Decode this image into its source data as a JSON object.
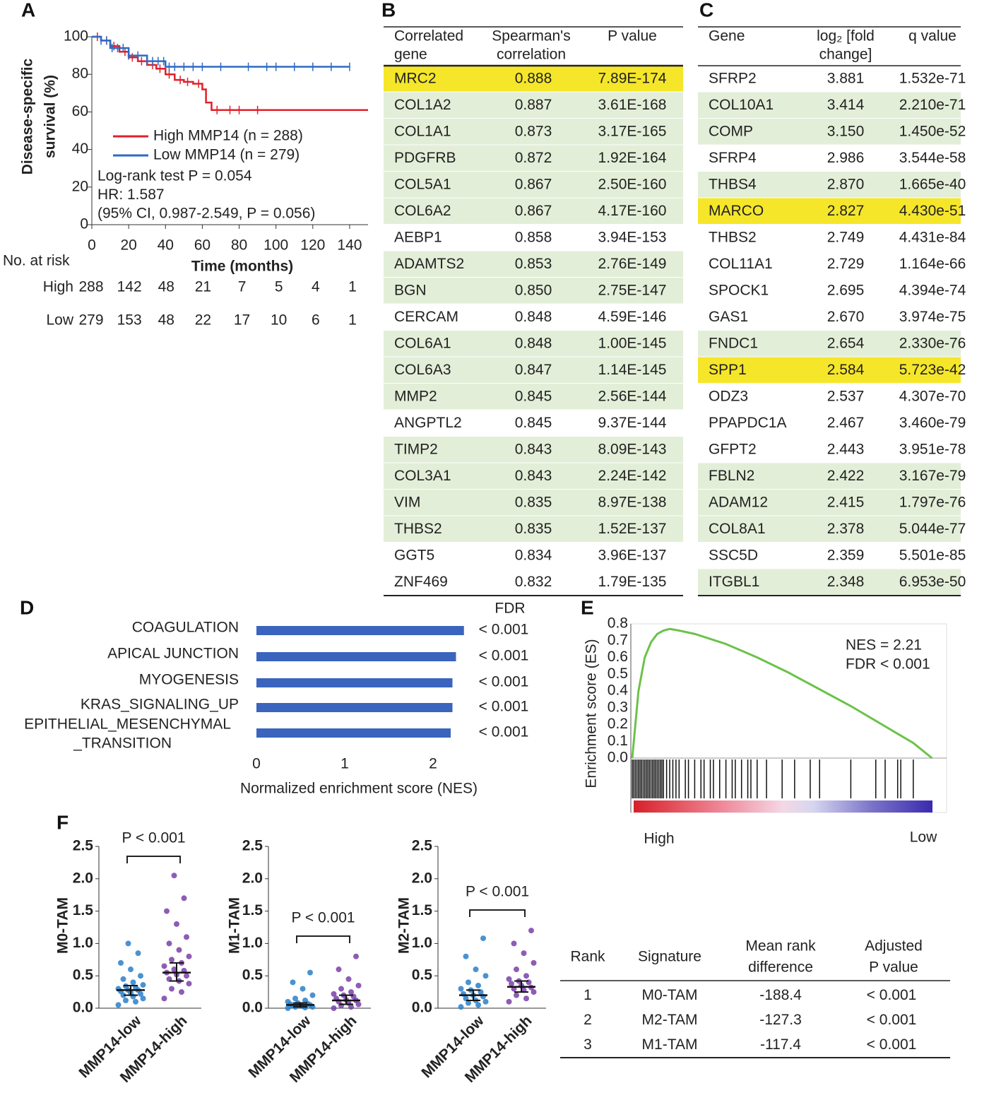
{
  "panel_labels": [
    "A",
    "B",
    "C",
    "D",
    "E",
    "F"
  ],
  "chart_data": [
    {
      "type": "step",
      "ylabel": [
        "Disease-specific",
        "survival (%)"
      ],
      "xlabel": "Time (months)",
      "xlim": [
        0,
        150
      ],
      "xticks": [
        0,
        20,
        40,
        60,
        80,
        100,
        120,
        140
      ],
      "ylim": [
        0,
        100
      ],
      "yticks": [
        0,
        20,
        40,
        60,
        80,
        100
      ],
      "series": [
        {
          "name": "High MMP14 (n = 288)",
          "color": "#e0202a",
          "x": [
            0,
            5,
            10,
            15,
            20,
            25,
            30,
            35,
            40,
            45,
            50,
            55,
            60,
            62,
            65,
            70,
            150
          ],
          "values": [
            100,
            98,
            95,
            92,
            89,
            87,
            85,
            83,
            80,
            77,
            76,
            75,
            72,
            65,
            61,
            61,
            61
          ],
          "censor_x": [
            3,
            8,
            12,
            18,
            22,
            27,
            33,
            37,
            42,
            48,
            52,
            58,
            68,
            75,
            80,
            90
          ]
        },
        {
          "name": "Low MMP14 (n = 279)",
          "color": "#2d6bc4",
          "x": [
            0,
            5,
            10,
            20,
            30,
            40,
            140
          ],
          "values": [
            100,
            98,
            94,
            90,
            87,
            84,
            84
          ],
          "censor_x": [
            5,
            8,
            11,
            14,
            17,
            20,
            25,
            30,
            33,
            36,
            39,
            42,
            45,
            50,
            55,
            60,
            70,
            85,
            95,
            100,
            110,
            120,
            130,
            140
          ]
        }
      ],
      "annotations": [
        "Log-rank test P = 0.054",
        "HR: 1.587",
        "(95% CI,  0.987-2.549, P = 0.056)"
      ],
      "risk_table": {
        "title": "No. at risk",
        "rows": [
          {
            "label": "High",
            "values": [
              288,
              142,
              48,
              21,
              7,
              5,
              4,
              1
            ]
          },
          {
            "label": "Low",
            "values": [
              279,
              153,
              48,
              22,
              17,
              10,
              6,
              1
            ]
          }
        ]
      }
    },
    {
      "type": "barh",
      "categories": [
        "COAGULATION",
        "APICAL JUNCTION",
        "MYOGENESIS",
        "KRAS_SIGNALING_UP",
        [
          "EPITHELIAL_MESENCHYMAL",
          "_TRANSITION"
        ]
      ],
      "values": [
        2.35,
        2.26,
        2.22,
        2.22,
        2.2
      ],
      "color": "#3a64bd",
      "xlim": [
        0,
        2.4
      ],
      "xticks": [
        0,
        1,
        2
      ],
      "xlabel": "Normalized enrichment score (NES)",
      "fdr_title": "FDR",
      "fdr": [
        "< 0.001",
        "< 0.001",
        "< 0.001",
        "< 0.001",
        "< 0.001"
      ]
    },
    {
      "type": "line",
      "ylabel": "Enrichment score (ES)",
      "color": "#6cc24a",
      "xlim": [
        0,
        100
      ],
      "x": [
        0,
        1,
        2,
        4,
        6,
        8,
        10,
        12,
        15,
        20,
        30,
        40,
        50,
        60,
        70,
        80,
        90,
        96
      ],
      "values": [
        0,
        0.2,
        0.4,
        0.6,
        0.69,
        0.74,
        0.76,
        0.77,
        0.76,
        0.74,
        0.68,
        0.6,
        0.51,
        0.41,
        0.31,
        0.2,
        0.09,
        0
      ],
      "ylim": [
        0,
        0.8
      ],
      "yticks": [
        {
          "value": 0,
          "label": "0.0"
        },
        0.1,
        0.2,
        0.3,
        0.4,
        0.5,
        0.6,
        0.7,
        0.8
      ],
      "annotations": [
        "NES = 2.21",
        "FDR < 0.001"
      ],
      "hits": [
        0,
        0.5,
        1,
        1.5,
        2,
        2.5,
        3,
        3.5,
        4,
        4.5,
        5,
        5.5,
        6,
        6.5,
        7,
        7.5,
        8,
        8.5,
        9,
        9.5,
        10,
        11,
        12,
        13,
        14,
        15,
        17,
        18,
        20,
        22,
        23,
        25,
        26,
        28,
        30,
        32,
        33,
        35,
        37,
        38,
        40,
        43,
        48,
        52,
        57,
        60,
        70,
        78,
        81,
        85,
        86,
        90
      ],
      "x_end_labels": [
        "High",
        "Low"
      ]
    },
    {
      "type": "dot",
      "ylabel": "M0-TAM",
      "categories": [
        "MMP14-low",
        "MMP14-high"
      ],
      "ylim": [
        0,
        2.5
      ],
      "yticks": [
        {
          "value": 0,
          "label": "0.0"
        },
        0.5,
        {
          "value": 1,
          "label": "1.0"
        },
        1.5,
        {
          "value": 2,
          "label": "2.0"
        },
        2.5
      ],
      "annotation": "P < 0.001",
      "groups": [
        {
          "color": "#2a7fc9",
          "values": [
            0.05,
            0.1,
            0.12,
            0.15,
            0.18,
            0.2,
            0.22,
            0.24,
            0.26,
            0.28,
            0.28,
            0.3,
            0.32,
            0.34,
            0.36,
            0.4,
            0.45,
            0.5,
            0.6,
            0.7,
            0.85,
            1.0
          ],
          "median": 0.28,
          "iqr": [
            0.2,
            0.35
          ]
        },
        {
          "color": "#7a3fa8",
          "values": [
            0.15,
            0.25,
            0.3,
            0.38,
            0.42,
            0.45,
            0.5,
            0.52,
            0.55,
            0.58,
            0.6,
            0.65,
            0.7,
            0.75,
            0.8,
            0.9,
            1.0,
            1.1,
            1.3,
            1.5,
            1.7,
            2.05
          ],
          "median": 0.55,
          "iqr": [
            0.42,
            0.7
          ]
        }
      ]
    },
    {
      "type": "dot",
      "ylabel": "M1-TAM",
      "categories": [
        "MMP14-low",
        "MMP14-high"
      ],
      "ylim": [
        0,
        2.5
      ],
      "yticks": [
        {
          "value": 0,
          "label": "0.0"
        },
        0.5,
        {
          "value": 1,
          "label": "1.0"
        },
        1.5,
        {
          "value": 2,
          "label": "2.0"
        },
        2.5
      ],
      "annotation": "P < 0.001",
      "groups": [
        {
          "color": "#2a7fc9",
          "values": [
            0,
            0.01,
            0.02,
            0.02,
            0.03,
            0.04,
            0.05,
            0.05,
            0.06,
            0.07,
            0.08,
            0.1,
            0.12,
            0.15,
            0.2,
            0.3,
            0.4,
            0.55
          ],
          "median": 0.05,
          "iqr": [
            0.02,
            0.08
          ]
        },
        {
          "color": "#7a3fa8",
          "values": [
            0,
            0.02,
            0.04,
            0.06,
            0.08,
            0.1,
            0.12,
            0.13,
            0.15,
            0.18,
            0.2,
            0.22,
            0.25,
            0.3,
            0.35,
            0.45,
            0.6,
            0.8
          ],
          "median": 0.12,
          "iqr": [
            0.06,
            0.2
          ]
        }
      ]
    },
    {
      "type": "dot",
      "ylabel": "M2-TAM",
      "categories": [
        "MMP14-low",
        "MMP14-high"
      ],
      "ylim": [
        0,
        2.5
      ],
      "yticks": [
        {
          "value": 0,
          "label": "0.0"
        },
        0.5,
        {
          "value": 1,
          "label": "1.0"
        },
        1.5,
        {
          "value": 2,
          "label": "2.0"
        },
        2.5
      ],
      "annotation": "P < 0.001",
      "groups": [
        {
          "color": "#2a7fc9",
          "values": [
            0.02,
            0.05,
            0.08,
            0.1,
            0.12,
            0.15,
            0.18,
            0.2,
            0.22,
            0.25,
            0.28,
            0.3,
            0.35,
            0.4,
            0.5,
            0.6,
            0.8,
            1.08
          ],
          "median": 0.2,
          "iqr": [
            0.12,
            0.28
          ]
        },
        {
          "color": "#7a3fa8",
          "values": [
            0.1,
            0.15,
            0.2,
            0.25,
            0.28,
            0.3,
            0.32,
            0.35,
            0.38,
            0.4,
            0.42,
            0.45,
            0.5,
            0.6,
            0.7,
            0.85,
            1.0,
            1.2
          ],
          "median": 0.33,
          "iqr": [
            0.25,
            0.42
          ]
        }
      ]
    }
  ],
  "tables": [
    {
      "header": [
        [
          "Correlated",
          "gene"
        ],
        [
          "Spearman's",
          "correlation"
        ],
        [
          "P value"
        ]
      ],
      "highlight_color": "#f5e62a",
      "shade_color": "#e3eed8",
      "highlight_rows": [
        0
      ],
      "shaded_rows": [
        1,
        2,
        3,
        4,
        5,
        7,
        8,
        10,
        11,
        12,
        14,
        15,
        16,
        17
      ],
      "rows": [
        [
          "MRC2",
          "0.888",
          "7.89E-174"
        ],
        [
          "COL1A2",
          "0.887",
          "3.61E-168"
        ],
        [
          "COL1A1",
          "0.873",
          "3.17E-165"
        ],
        [
          "PDGFRB",
          "0.872",
          "1.92E-164"
        ],
        [
          "COL5A1",
          "0.867",
          "2.50E-160"
        ],
        [
          "COL6A2",
          "0.867",
          "4.17E-160"
        ],
        [
          "AEBP1",
          "0.858",
          "3.94E-153"
        ],
        [
          "ADAMTS2",
          "0.853",
          "2.76E-149"
        ],
        [
          "BGN",
          "0.850",
          "2.75E-147"
        ],
        [
          "CERCAM",
          "0.848",
          "4.59E-146"
        ],
        [
          "COL6A1",
          "0.848",
          "1.00E-145"
        ],
        [
          "COL6A3",
          "0.847",
          "1.14E-145"
        ],
        [
          "MMP2",
          "0.845",
          "2.56E-144"
        ],
        [
          "ANGPTL2",
          "0.845",
          "9.37E-144"
        ],
        [
          "TIMP2",
          "0.843",
          "8.09E-143"
        ],
        [
          "COL3A1",
          "0.843",
          "2.24E-142"
        ],
        [
          "VIM",
          "0.835",
          "8.97E-138"
        ],
        [
          "THBS2",
          "0.835",
          "1.52E-137"
        ],
        [
          "GGT5",
          "0.834",
          "3.96E-137"
        ],
        [
          "ZNF469",
          "0.832",
          "1.79E-135"
        ]
      ]
    },
    {
      "header": [
        [
          "Gene"
        ],
        [
          "log₂ [fold",
          "change]"
        ],
        [
          "q value"
        ]
      ],
      "highlight_color": "#f5e62a",
      "shade_color": "#e3eed8",
      "highlight_rows": [
        5,
        11
      ],
      "shaded_rows": [
        1,
        2,
        4,
        10,
        15,
        16,
        17,
        19
      ],
      "rows": [
        [
          "SFRP2",
          "3.881",
          "1.532e-71"
        ],
        [
          "COL10A1",
          "3.414",
          "2.210e-71"
        ],
        [
          "COMP",
          "3.150",
          "1.450e-52"
        ],
        [
          "SFRP4",
          "2.986",
          "3.544e-58"
        ],
        [
          "THBS4",
          "2.870",
          "1.665e-40"
        ],
        [
          "MARCO",
          "2.827",
          "4.430e-51"
        ],
        [
          "THBS2",
          "2.749",
          "4.431e-84"
        ],
        [
          "COL11A1",
          "2.729",
          "1.164e-66"
        ],
        [
          "SPOCK1",
          "2.695",
          "4.394e-74"
        ],
        [
          "GAS1",
          "2.670",
          "3.974e-75"
        ],
        [
          "FNDC1",
          "2.654",
          "2.330e-76"
        ],
        [
          "SPP1",
          "2.584",
          "5.723e-42"
        ],
        [
          "ODZ3",
          "2.537",
          "4.307e-70"
        ],
        [
          "PPAPDC1A",
          "2.467",
          "3.460e-79"
        ],
        [
          "GFPT2",
          "2.443",
          "3.951e-78"
        ],
        [
          "FBLN2",
          "2.422",
          "3.167e-79"
        ],
        [
          "ADAM12",
          "2.415",
          "1.797e-76"
        ],
        [
          "COL8A1",
          "2.378",
          "5.044e-77"
        ],
        [
          "SSC5D",
          "2.359",
          "5.501e-85"
        ],
        [
          "ITGBL1",
          "2.348",
          "6.953e-50"
        ]
      ]
    },
    {
      "header": [
        [
          "Rank"
        ],
        [
          "Signature"
        ],
        [
          "Mean rank",
          "difference"
        ],
        [
          "Adjusted",
          "P value"
        ]
      ],
      "rows": [
        [
          "1",
          "M0-TAM",
          "-188.4",
          "< 0.001"
        ],
        [
          "2",
          "M2-TAM",
          "-127.3",
          "< 0.001"
        ],
        [
          "3",
          "M1-TAM",
          "-117.4",
          "< 0.001"
        ]
      ]
    }
  ]
}
